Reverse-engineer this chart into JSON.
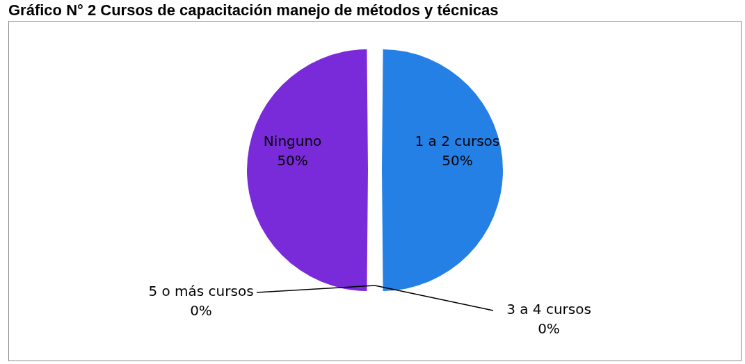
{
  "chart_data": {
    "type": "pie",
    "title": "Gráfico N° 2 Cursos de capacitación manejo de métodos y técnicas",
    "categories": [
      "1 a 2 cursos",
      "3 a 4 cursos",
      "5 o más cursos",
      "Ninguno"
    ],
    "values": [
      50,
      0,
      0,
      50
    ],
    "colors": [
      "#2580e6",
      "#c0504d",
      "#9bbb59",
      "#7a2bd9"
    ],
    "value_labels": [
      "50%",
      "0%",
      "0%",
      "50%"
    ],
    "legend": false
  }
}
